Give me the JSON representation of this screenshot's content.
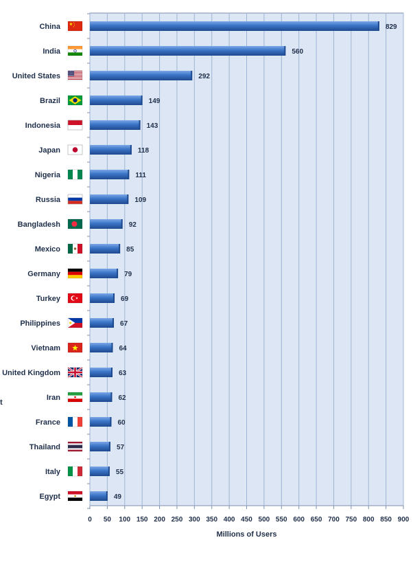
{
  "chart_data": {
    "type": "bar",
    "orientation": "horizontal",
    "categories": [
      "China",
      "India",
      "United States",
      "Brazil",
      "Indonesia",
      "Japan",
      "Nigeria",
      "Russia",
      "Bangladesh",
      "Mexico",
      "Germany",
      "Turkey",
      "Philippines",
      "Vietnam",
      "United Kingdom",
      "Iran",
      "France",
      "Thailand",
      "Italy",
      "Egypt"
    ],
    "values": [
      829,
      560,
      292,
      149,
      143,
      118,
      111,
      109,
      92,
      85,
      79,
      69,
      67,
      64,
      63,
      62,
      60,
      57,
      55,
      49
    ],
    "flags": [
      "china-flag-icon",
      "india-flag-icon",
      "united-states-flag-icon",
      "brazil-flag-icon",
      "indonesia-flag-icon",
      "japan-flag-icon",
      "nigeria-flag-icon",
      "russia-flag-icon",
      "bangladesh-flag-icon",
      "mexico-flag-icon",
      "germany-flag-icon",
      "turkey-flag-icon",
      "philippines-flag-icon",
      "vietnam-flag-icon",
      "united-kingdom-flag-icon",
      "iran-flag-icon",
      "france-flag-icon",
      "thailand-flag-icon",
      "italy-flag-icon",
      "egypt-flag-icon"
    ],
    "xlabel": "Millions of Users",
    "ylabel": "",
    "xlim": [
      0,
      900
    ],
    "xticks": [
      0,
      50,
      100,
      150,
      200,
      250,
      300,
      350,
      400,
      450,
      500,
      550,
      600,
      650,
      700,
      750,
      800,
      850,
      900
    ],
    "grid": true,
    "colors": {
      "bar": "#2f66b5",
      "bar_light": "#6f9be0",
      "bar_dark": "#1d4a8f",
      "plot_bg": "#dce6f4",
      "grid": "#9fb4d3",
      "axis": "#7b8fae",
      "text": "#1f2f4a"
    }
  },
  "stray_text": "t"
}
